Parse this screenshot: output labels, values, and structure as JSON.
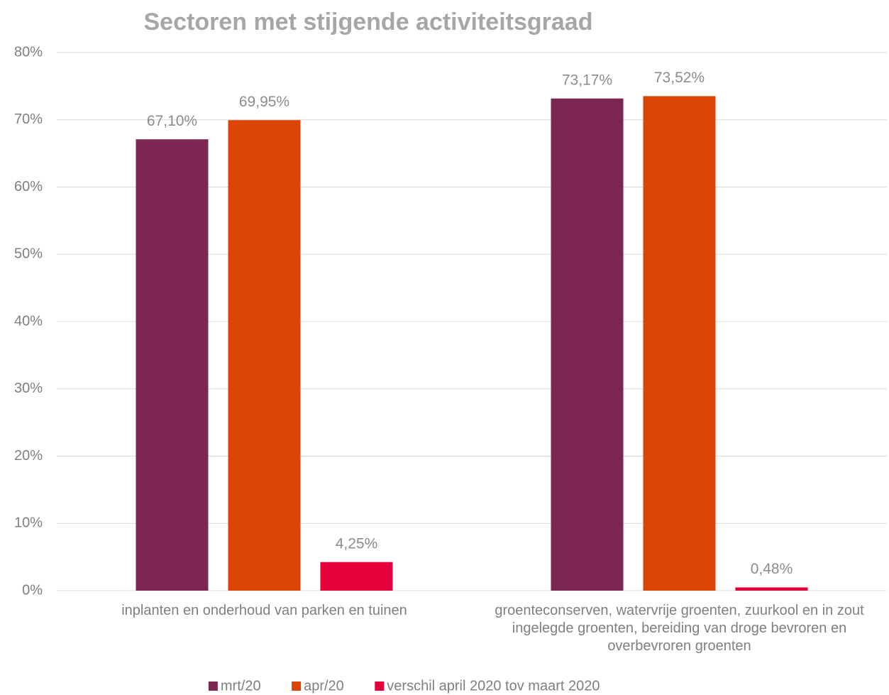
{
  "chart_data": {
    "type": "bar",
    "title": "Sectoren met stijgende activiteitsgraad",
    "categories": [
      "inplanten en onderhoud van parken en tuinen",
      "groenteconserven, watervrije groenten, zuurkool en in zout ingelegde groenten, bereiding van droge bevroren en overbevroren groenten"
    ],
    "series": [
      {
        "name": "mrt/20",
        "color": "#7b2752",
        "values": [
          67.1,
          73.17
        ],
        "value_labels": [
          "67,10%",
          "73,17%"
        ]
      },
      {
        "name": "apr/20",
        "color": "#dc4405",
        "values": [
          69.95,
          73.52
        ],
        "value_labels": [
          "69,95%",
          "73,52%"
        ]
      },
      {
        "name": "verschil april 2020 tov maart 2020",
        "color": "#e4003a",
        "values": [
          4.25,
          0.48
        ],
        "value_labels": [
          "4,25%",
          "0,48%"
        ]
      }
    ],
    "ylim": [
      0,
      80
    ],
    "yticks": [
      {
        "value": 0,
        "label": "0%"
      },
      {
        "value": 10,
        "label": "10%"
      },
      {
        "value": 20,
        "label": "20%"
      },
      {
        "value": 30,
        "label": "30%"
      },
      {
        "value": 40,
        "label": "40%"
      },
      {
        "value": 50,
        "label": "50%"
      },
      {
        "value": 60,
        "label": "60%"
      },
      {
        "value": 70,
        "label": "70%"
      },
      {
        "value": 80,
        "label": "80%"
      }
    ],
    "grid": true,
    "legend": "bottom"
  }
}
